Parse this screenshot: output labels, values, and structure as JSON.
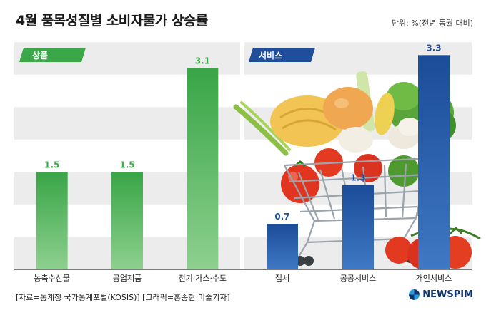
{
  "chart_data": {
    "type": "bar",
    "title": "4월 품목성질별 소비자물가 상승률",
    "unit_label": "단위: %(전년 동월 대비)",
    "ylim": [
      0,
      3.6
    ],
    "grid": true,
    "groups": [
      {
        "name": "상품",
        "color": "#3aa748",
        "categories": [
          "농축수산물",
          "공업제품",
          "전기·가스·수도"
        ],
        "values": [
          1.5,
          1.5,
          3.1
        ]
      },
      {
        "name": "서비스",
        "color": "#1f4e9a",
        "categories": [
          "집세",
          "공공서비스",
          "개인서비스"
        ],
        "values": [
          0.7,
          1.3,
          3.3
        ]
      }
    ]
  },
  "footer": {
    "source": "[자료=통계청 국가통계포털(KOSIS)] [그래픽=홍종현 미술기자]",
    "brand": "NEWSPIM"
  }
}
